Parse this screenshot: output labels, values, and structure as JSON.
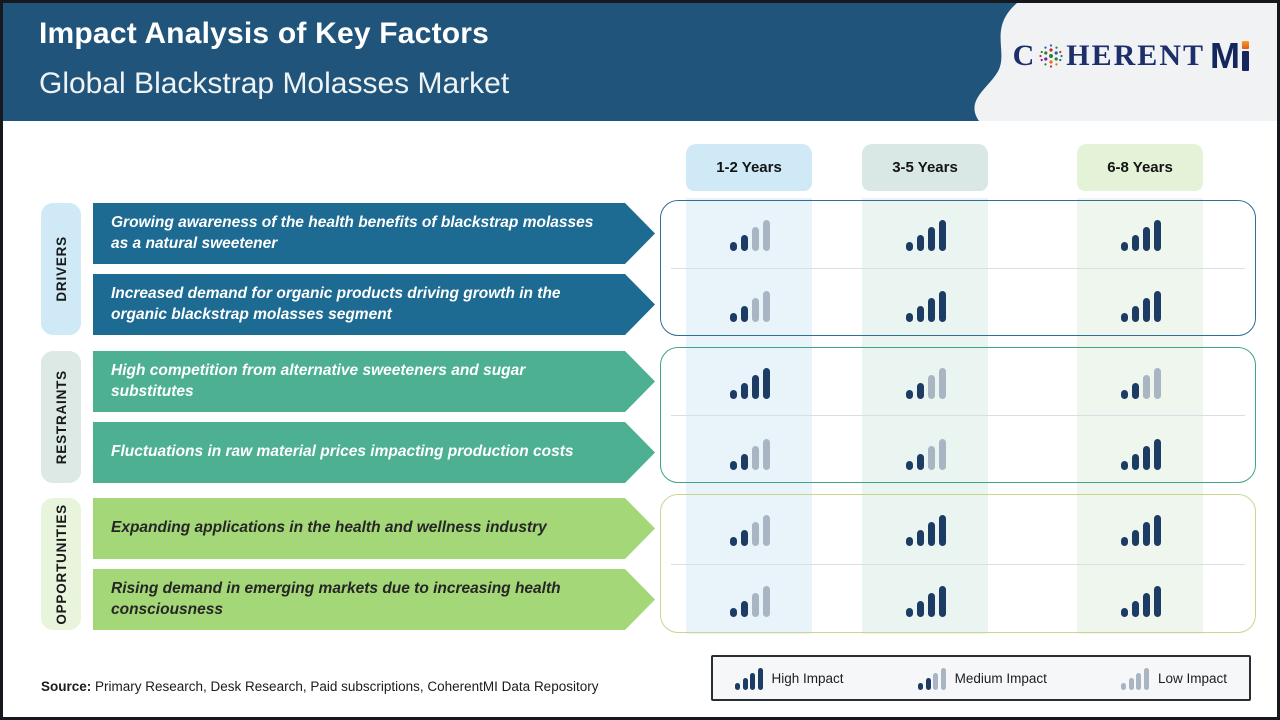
{
  "header": {
    "title": "Impact Analysis of Key Factors",
    "subtitle": "Global Blackstrap Molasses Market",
    "brand_word": "C",
    "brand_word_rest": "HERENT",
    "brand_suffix_m": "M"
  },
  "colors": {
    "header_bg": "#20547a",
    "bar_dark": "#1c3c63",
    "bar_gray": "#a9b5c2"
  },
  "columns": [
    {
      "label": "1-2 Years",
      "tab_bg": "#cfe9f7",
      "stripe_bg": "#e8f3fa"
    },
    {
      "label": "3-5 Years",
      "tab_bg": "#d9e8e4",
      "stripe_bg": "#eaf4f1"
    },
    {
      "label": "6-8 Years",
      "tab_bg": "#e4f2d7",
      "stripe_bg": "#eef6ed"
    }
  ],
  "sections": [
    {
      "name": "DRIVERS",
      "label_bg": "#cfe9f7",
      "arrow_bg": "#1d6b93",
      "text_color": "#ffffff",
      "panel_border": "#2f6f96",
      "rows": [
        {
          "text": "Growing awareness of the health benefits of blackstrap molasses as a natural sweetener",
          "impacts": [
            "medium",
            "high",
            "high"
          ]
        },
        {
          "text": "Increased demand for organic products driving growth in the organic blackstrap molasses segment",
          "impacts": [
            "medium",
            "high",
            "high"
          ]
        }
      ]
    },
    {
      "name": "RESTRAINTS",
      "label_bg": "#dce9e5",
      "arrow_bg": "#4db093",
      "text_color": "#ffffff",
      "panel_border": "#3fa489",
      "rows": [
        {
          "text": "High competition from alternative sweeteners and sugar substitutes",
          "impacts": [
            "high",
            "medium",
            "medium"
          ]
        },
        {
          "text": "Fluctuations in raw material prices impacting production costs",
          "impacts": [
            "medium",
            "medium",
            "high"
          ]
        }
      ]
    },
    {
      "name": "OPPORTUNITIES",
      "label_bg": "#e8f4db",
      "arrow_bg": "#a4d778",
      "text_color": "#262626",
      "panel_border": "#cbd58d",
      "rows": [
        {
          "text": "Expanding applications in the health and wellness industry",
          "impacts": [
            "medium",
            "high",
            "high"
          ]
        },
        {
          "text": "Rising demand in emerging markets due to increasing health consciousness",
          "impacts": [
            "medium",
            "high",
            "high"
          ]
        }
      ]
    }
  ],
  "legend": [
    {
      "level": "high",
      "label": "High Impact"
    },
    {
      "level": "medium",
      "label": "Medium Impact"
    },
    {
      "level": "low",
      "label": "Low Impact"
    }
  ],
  "source": {
    "prefix": "Source:",
    "text": " Primary Research, Desk Research, Paid subscriptions, CoherentMI Data Repository"
  },
  "chart_data": {
    "type": "table",
    "title": "Impact Analysis of Key Factors",
    "subtitle": "Global Blackstrap Molasses Market",
    "columns": [
      "1-2 Years",
      "3-5 Years",
      "6-8 Years"
    ],
    "rows": [
      {
        "group": "Drivers",
        "factor": "Growing awareness of the health benefits of blackstrap molasses as a natural sweetener",
        "impact": [
          "Medium",
          "High",
          "High"
        ]
      },
      {
        "group": "Drivers",
        "factor": "Increased demand for organic products driving growth in the organic blackstrap molasses segment",
        "impact": [
          "Medium",
          "High",
          "High"
        ]
      },
      {
        "group": "Restraints",
        "factor": "High competition from alternative sweeteners and sugar substitutes",
        "impact": [
          "High",
          "Medium",
          "Medium"
        ]
      },
      {
        "group": "Restraints",
        "factor": "Fluctuations in raw material prices impacting production costs",
        "impact": [
          "Medium",
          "Medium",
          "High"
        ]
      },
      {
        "group": "Opportunities",
        "factor": "Expanding applications in the health and wellness industry",
        "impact": [
          "Medium",
          "High",
          "High"
        ]
      },
      {
        "group": "Opportunities",
        "factor": "Rising demand in emerging markets due to increasing health consciousness",
        "impact": [
          "Medium",
          "High",
          "High"
        ]
      }
    ],
    "legend": [
      "High Impact",
      "Medium Impact",
      "Low Impact"
    ],
    "legend_position": "bottom-right"
  }
}
